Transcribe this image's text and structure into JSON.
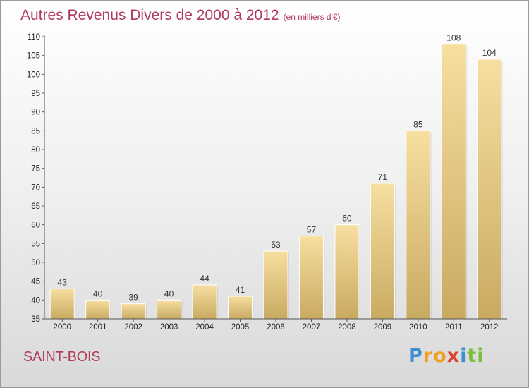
{
  "title": "Autres Revenus Divers de 2000 à 2012",
  "subtitle": "(en milliers d'€)",
  "place": "SAINT-BOIS",
  "logo": {
    "letters": [
      "P",
      "r",
      "o",
      "x",
      "i",
      "t",
      "i"
    ],
    "colors": [
      "#3f8fd0",
      "#f0a020",
      "#f0a020",
      "#e04030",
      "#3f8fd0",
      "#7cbf3a",
      "#7cbf3a"
    ]
  },
  "colors": {
    "title": "#b03a5b",
    "bar_light": "#f7dfa0",
    "bar_dark": "#c9aa62",
    "axis": "#555555"
  },
  "chart_data": {
    "type": "bar",
    "title": "Autres Revenus Divers de 2000 à 2012",
    "categories": [
      "2000",
      "2001",
      "2002",
      "2003",
      "2004",
      "2005",
      "2006",
      "2007",
      "2008",
      "2009",
      "2010",
      "2011",
      "2012"
    ],
    "values": [
      43,
      40,
      39,
      40,
      44,
      41,
      53,
      57,
      60,
      71,
      85,
      108,
      104
    ],
    "ylim": [
      35,
      110
    ],
    "yticks": [
      35,
      40,
      45,
      50,
      55,
      60,
      65,
      70,
      75,
      80,
      85,
      90,
      95,
      100,
      105,
      110
    ],
    "xlabel": "",
    "ylabel": "",
    "grid": false,
    "data_labels": true
  }
}
